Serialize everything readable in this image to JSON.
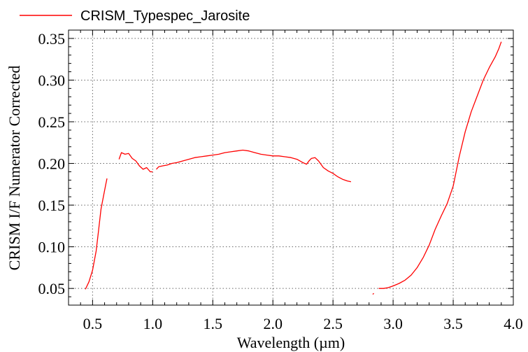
{
  "chart_data": {
    "type": "line",
    "xlabel": "Wavelength (µm)",
    "ylabel": "CRISM I/F Numerator Corrected",
    "xlim": [
      0.3,
      4.0
    ],
    "ylim": [
      0.03,
      0.36
    ],
    "x_ticks": [
      0.5,
      1.0,
      1.5,
      2.0,
      2.5,
      3.0,
      3.5,
      4.0
    ],
    "x_tick_labels": [
      "0.5",
      "1.0",
      "1.5",
      "2.0",
      "2.5",
      "3.0",
      "3.5",
      "4.0"
    ],
    "y_ticks": [
      0.05,
      0.1,
      0.15,
      0.2,
      0.25,
      0.3,
      0.35
    ],
    "y_tick_labels": [
      "0.05",
      "0.10",
      "0.15",
      "0.20",
      "0.25",
      "0.30",
      "0.35"
    ],
    "grid": true,
    "legend_position": "top-left",
    "series": [
      {
        "name": "CRISM_Typespec_Jarosite",
        "color": "#ff0000",
        "segments": [
          [
            [
              0.44,
              0.049
            ],
            [
              0.47,
              0.058
            ],
            [
              0.5,
              0.072
            ],
            [
              0.53,
              0.095
            ],
            [
              0.55,
              0.12
            ],
            [
              0.57,
              0.145
            ],
            [
              0.59,
              0.16
            ],
            [
              0.61,
              0.175
            ],
            [
              0.62,
              0.182
            ]
          ],
          [
            [
              0.72,
              0.205
            ],
            [
              0.74,
              0.213
            ],
            [
              0.77,
              0.211
            ],
            [
              0.8,
              0.212
            ],
            [
              0.83,
              0.206
            ],
            [
              0.86,
              0.203
            ],
            [
              0.89,
              0.197
            ],
            [
              0.92,
              0.193
            ],
            [
              0.95,
              0.195
            ],
            [
              0.98,
              0.19
            ],
            [
              1.0,
              0.19
            ]
          ],
          [
            [
              1.03,
              0.193
            ],
            [
              1.05,
              0.196
            ],
            [
              1.08,
              0.197
            ],
            [
              1.12,
              0.198
            ],
            [
              1.16,
              0.2
            ],
            [
              1.2,
              0.201
            ],
            [
              1.25,
              0.203
            ],
            [
              1.3,
              0.205
            ],
            [
              1.35,
              0.207
            ],
            [
              1.4,
              0.208
            ],
            [
              1.45,
              0.209
            ],
            [
              1.5,
              0.21
            ],
            [
              1.55,
              0.211
            ],
            [
              1.6,
              0.213
            ],
            [
              1.65,
              0.214
            ],
            [
              1.7,
              0.215
            ],
            [
              1.75,
              0.216
            ],
            [
              1.8,
              0.215
            ],
            [
              1.85,
              0.213
            ],
            [
              1.9,
              0.211
            ],
            [
              1.95,
              0.21
            ],
            [
              2.0,
              0.209
            ],
            [
              2.05,
              0.209
            ],
            [
              2.1,
              0.208
            ],
            [
              2.15,
              0.207
            ],
            [
              2.2,
              0.205
            ],
            [
              2.25,
              0.201
            ],
            [
              2.28,
              0.199
            ],
            [
              2.3,
              0.203
            ],
            [
              2.32,
              0.206
            ],
            [
              2.35,
              0.207
            ],
            [
              2.38,
              0.203
            ],
            [
              2.42,
              0.195
            ],
            [
              2.46,
              0.191
            ],
            [
              2.5,
              0.188
            ],
            [
              2.54,
              0.184
            ],
            [
              2.58,
              0.181
            ],
            [
              2.62,
              0.179
            ],
            [
              2.65,
              0.178
            ]
          ],
          [
            [
              2.83,
              0.043
            ],
            [
              2.84,
              0.044
            ]
          ],
          [
            [
              2.88,
              0.05
            ],
            [
              2.92,
              0.05
            ],
            [
              2.96,
              0.051
            ],
            [
              3.0,
              0.053
            ],
            [
              3.05,
              0.056
            ],
            [
              3.1,
              0.06
            ],
            [
              3.15,
              0.066
            ],
            [
              3.2,
              0.075
            ],
            [
              3.25,
              0.087
            ],
            [
              3.3,
              0.102
            ],
            [
              3.35,
              0.121
            ],
            [
              3.4,
              0.137
            ],
            [
              3.45,
              0.152
            ],
            [
              3.5,
              0.173
            ],
            [
              3.55,
              0.208
            ],
            [
              3.6,
              0.238
            ],
            [
              3.65,
              0.262
            ],
            [
              3.7,
              0.281
            ],
            [
              3.75,
              0.3
            ],
            [
              3.8,
              0.315
            ],
            [
              3.85,
              0.328
            ],
            [
              3.88,
              0.338
            ],
            [
              3.9,
              0.346
            ]
          ]
        ]
      }
    ]
  }
}
